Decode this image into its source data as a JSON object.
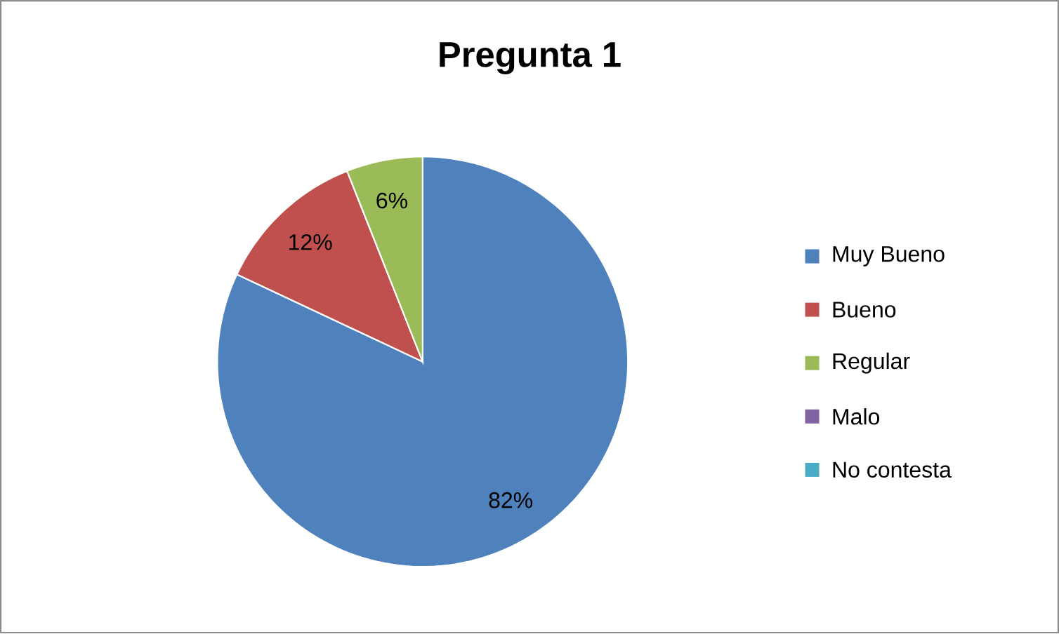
{
  "chart_data": {
    "type": "pie",
    "title": "Pregunta 1",
    "categories": [
      "Muy Bueno",
      "Bueno",
      "Regular",
      "Malo",
      "No contesta"
    ],
    "values": [
      82,
      12,
      6,
      0,
      0
    ],
    "colors": [
      "#4f81bd",
      "#c0504d",
      "#9bbb59",
      "#8064a2",
      "#4bacc6"
    ],
    "value_labels": [
      "82%",
      "12%",
      "6%",
      null,
      null
    ],
    "legend": "right"
  }
}
